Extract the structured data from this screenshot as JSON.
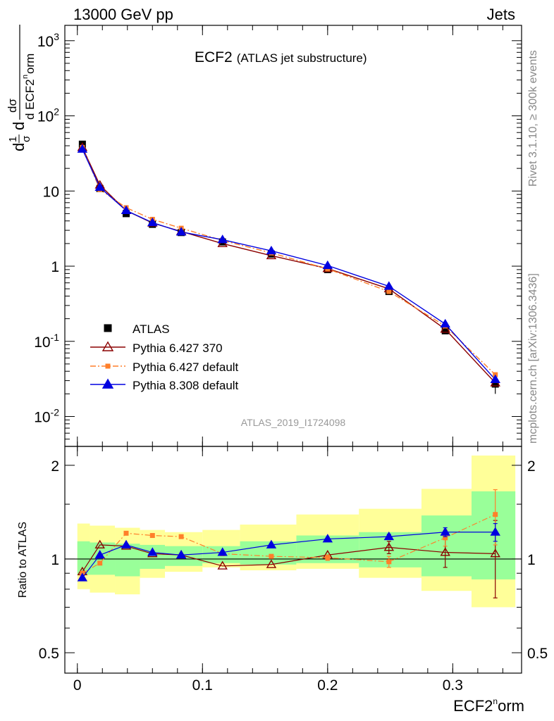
{
  "header": {
    "energy_label": "13000 GeV pp",
    "process_label": "Jets"
  },
  "plot": {
    "title_main": "ECF2",
    "title_sub": "(ATLAS jet substructure)",
    "analysis_id": "ATLAS_2019_I1724098",
    "side_label_top": "Rivet 3.1.10, ≥ 300k events",
    "side_label_bottom": "mcplots.cern.ch [arXiv:1306.3436]",
    "ylabel_main": "1/σ dσ/d ECF2^norm",
    "ylabel_ratio": "Ratio to ATLAS",
    "xlabel": "ECF2^norm"
  },
  "legend": [
    {
      "label": "ATLAS"
    },
    {
      "label": "Pythia 6.427 370"
    },
    {
      "label": "Pythia 6.427 default"
    },
    {
      "label": "Pythia 8.308 default"
    }
  ],
  "chart_data": {
    "type": "line",
    "x_scale": "linear",
    "xlim": [
      -0.01,
      0.355
    ],
    "x_ticks": [
      0,
      0.1,
      0.2,
      0.3
    ],
    "x_tick_labels": [
      "0",
      "0.1",
      "0.2",
      "0.3"
    ],
    "main": {
      "y_scale": "log",
      "ylim": [
        0.004,
        1600
      ],
      "y_ticks": [
        0.01,
        0.1,
        1,
        10,
        100,
        1000
      ],
      "y_tick_labels": [
        "10^-2",
        "10^-1",
        "1",
        "10",
        "10^2",
        "10^3"
      ]
    },
    "ratio": {
      "y_scale": "log",
      "ylim": [
        0.43,
        2.3
      ],
      "y_ticks": [
        0.5,
        1,
        2
      ],
      "y_tick_labels": [
        "0.5",
        "1",
        "2"
      ]
    },
    "bins": [
      [
        0,
        0.01
      ],
      [
        0.01,
        0.03
      ],
      [
        0.03,
        0.05
      ],
      [
        0.05,
        0.07
      ],
      [
        0.07,
        0.1
      ],
      [
        0.1,
        0.13
      ],
      [
        0.13,
        0.175
      ],
      [
        0.175,
        0.225
      ],
      [
        0.225,
        0.275
      ],
      [
        0.275,
        0.315
      ],
      [
        0.315,
        0.35
      ]
    ],
    "x": [
      0.004,
      0.018,
      0.039,
      0.06,
      0.083,
      0.116,
      0.155,
      0.2,
      0.249,
      0.294,
      0.334
    ],
    "data": {
      "name": "ATLAS",
      "color": "#000000",
      "values": [
        42,
        10.8,
        5.0,
        3.6,
        2.8,
        2.1,
        1.45,
        0.9,
        0.46,
        0.138,
        0.027
      ],
      "err": [
        0,
        0,
        0,
        0,
        0,
        0,
        0,
        0,
        0,
        0,
        0.007
      ],
      "ratio_band_yellow": [
        [
          0.8,
          1.3
        ],
        [
          0.78,
          1.28
        ],
        [
          0.77,
          1.26
        ],
        [
          0.87,
          1.24
        ],
        [
          0.91,
          1.22
        ],
        [
          0.94,
          1.24
        ],
        [
          0.92,
          1.29
        ],
        [
          0.93,
          1.39
        ],
        [
          0.87,
          1.45
        ],
        [
          0.79,
          1.68
        ],
        [
          0.7,
          2.15
        ]
      ],
      "ratio_band_green": [
        [
          0.89,
          1.14
        ],
        [
          0.89,
          1.13
        ],
        [
          0.88,
          1.12
        ],
        [
          0.93,
          1.11
        ],
        [
          0.95,
          1.1
        ],
        [
          0.97,
          1.1
        ],
        [
          0.96,
          1.14
        ],
        [
          0.97,
          1.19
        ],
        [
          0.94,
          1.22
        ],
        [
          0.88,
          1.38
        ],
        [
          0.86,
          1.65
        ]
      ]
    },
    "series": [
      {
        "name": "Pythia 6.427 370",
        "color": "#8b0000",
        "marker": "open-triangle",
        "line": "solid",
        "values": [
          38,
          12.0,
          5.5,
          3.75,
          2.9,
          2.0,
          1.38,
          0.93,
          0.5,
          0.145,
          0.028
        ],
        "ratio": [
          0.91,
          1.11,
          1.1,
          1.04,
          1.03,
          0.95,
          0.96,
          1.03,
          1.09,
          1.05,
          1.04
        ],
        "ratio_err": [
          0,
          0,
          0,
          0,
          0,
          0,
          0,
          0,
          0.05,
          0.11,
          0.29
        ]
      },
      {
        "name": "Pythia 6.427 default",
        "color": "#ff7f2a",
        "marker": "filled-square",
        "line": "dashdot",
        "values": [
          38,
          10.5,
          6.0,
          4.2,
          3.2,
          2.2,
          1.5,
          0.92,
          0.46,
          0.16,
          0.036
        ],
        "ratio": [
          0.9,
          0.97,
          1.21,
          1.19,
          1.18,
          1.04,
          1.02,
          1.01,
          0.98,
          1.17,
          1.39
        ],
        "ratio_err": [
          0,
          0,
          0,
          0,
          0,
          0,
          0,
          0.02,
          0.04,
          0.07,
          0.28
        ]
      },
      {
        "name": "Pythia 8.308 default",
        "color": "#0000e0",
        "marker": "filled-triangle",
        "line": "solid",
        "values": [
          36,
          11.2,
          5.5,
          3.8,
          2.85,
          2.25,
          1.6,
          1.02,
          0.54,
          0.17,
          0.031
        ],
        "ratio": [
          0.87,
          1.03,
          1.11,
          1.05,
          1.03,
          1.05,
          1.11,
          1.16,
          1.18,
          1.22,
          1.22
        ],
        "ratio_err": [
          0,
          0,
          0,
          0,
          0,
          0,
          0,
          0,
          0.02,
          0.04,
          0.08
        ]
      }
    ]
  }
}
